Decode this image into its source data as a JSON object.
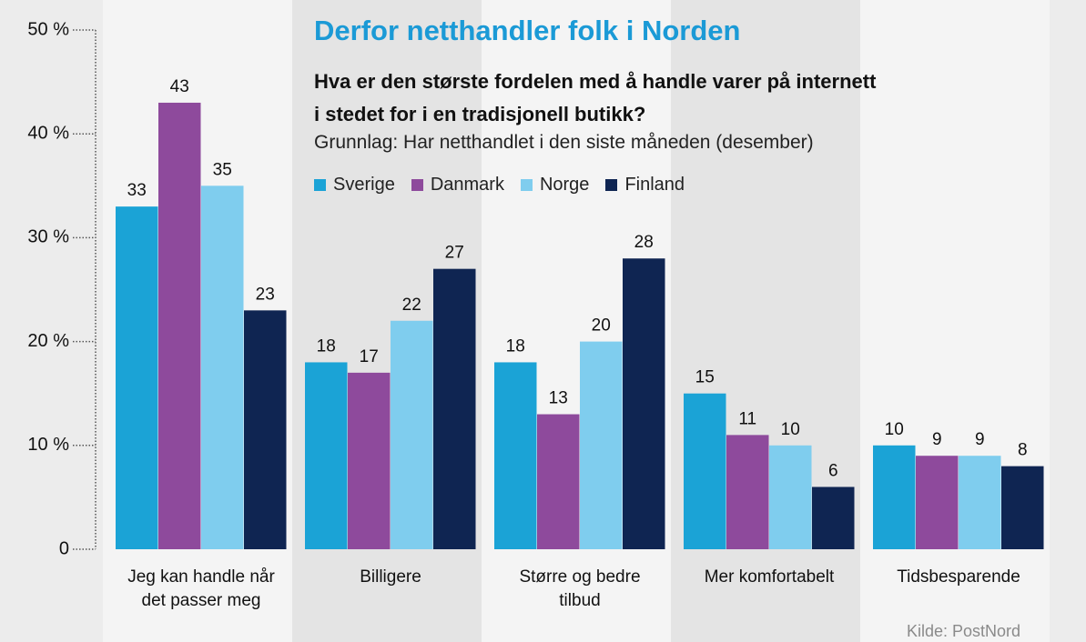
{
  "title": "Derfor netthandler folk i Norden",
  "chart_data": {
    "type": "bar",
    "title": "Derfor netthandler folk i Norden",
    "subtitle": "Hva er den største fordelen med å handle varer på internett\ni stedet for i en tradisjonell butikk?",
    "note": "Grunnlag: Har netthandlet i den siste måneden (desember)",
    "source": "Kilde: PostNord",
    "categories": [
      "Jeg kan handle når\ndet passer meg",
      "Billigere",
      "Større og bedre\ntilbud",
      "Mer komfortabelt",
      "Tidsbesparende"
    ],
    "series": [
      {
        "name": "Sverige",
        "color": "#1ba3d6",
        "values": [
          33,
          18,
          18,
          15,
          10
        ]
      },
      {
        "name": "Danmark",
        "color": "#8e4a9c",
        "values": [
          43,
          17,
          13,
          11,
          9
        ]
      },
      {
        "name": "Norge",
        "color": "#7fcdee",
        "values": [
          35,
          22,
          20,
          10,
          9
        ]
      },
      {
        "name": "Finland",
        "color": "#0f2552",
        "values": [
          23,
          27,
          28,
          6,
          8
        ]
      }
    ],
    "ylim": [
      0,
      50
    ],
    "yticks": [
      0,
      {
        "value": 10,
        "label": "10 %"
      },
      {
        "value": 20,
        "label": "20 %"
      },
      {
        "value": 30,
        "label": "30 %"
      },
      {
        "value": 40,
        "label": "40 %"
      },
      {
        "value": 50,
        "label": "50 %"
      }
    ]
  }
}
